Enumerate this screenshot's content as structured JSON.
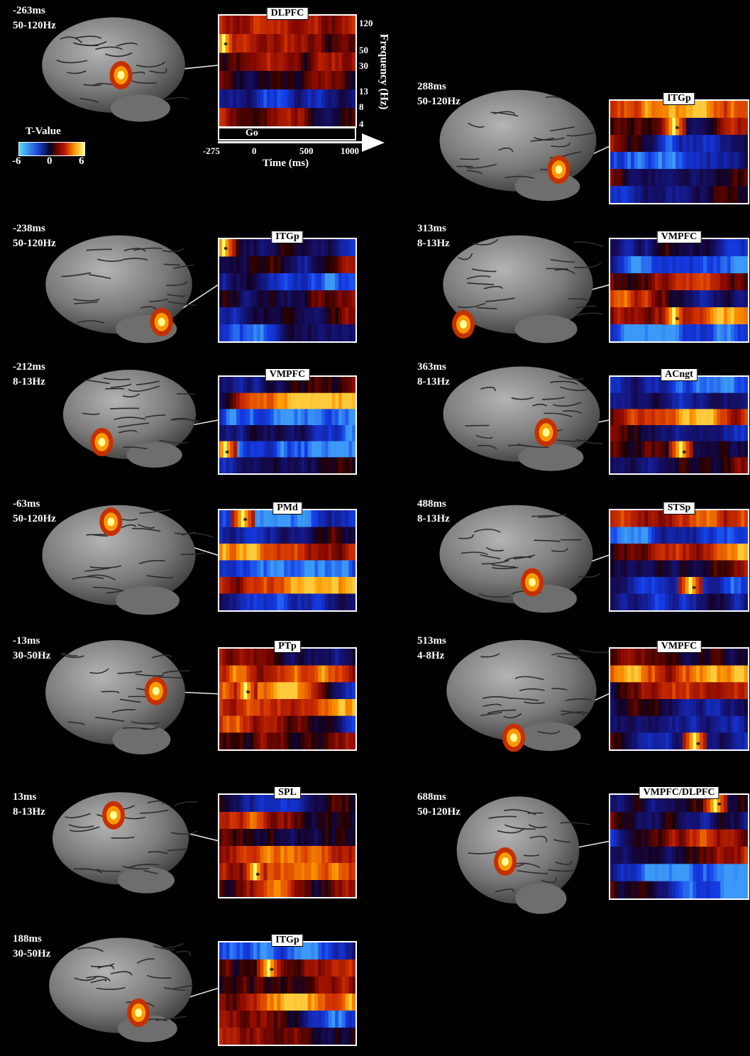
{
  "colors": {
    "background": "#000000",
    "label": "#ffffff",
    "brain": "#8a8a8a"
  },
  "colorbar": {
    "title": "T-Value",
    "ticks": [
      "-6",
      "0",
      "6"
    ]
  },
  "axes": {
    "time_label": "Time (ms)",
    "time_ticks": [
      "-275",
      "0",
      "500",
      "1000"
    ],
    "freq_label": "Frequency (Hz)",
    "freq_ticks": [
      "120",
      "50",
      "30",
      "13",
      "8",
      "4"
    ],
    "event_label": "Go"
  },
  "panels": [
    {
      "time": "-263ms",
      "band": "50-120Hz",
      "roi": "DLPFC"
    },
    {
      "time": "288ms",
      "band": "50-120Hz",
      "roi": "ITGp"
    },
    {
      "time": "-238ms",
      "band": "50-120Hz",
      "roi": "ITGp"
    },
    {
      "time": "313ms",
      "band": "8-13Hz",
      "roi": "VMPFC"
    },
    {
      "time": "-212ms",
      "band": "8-13Hz",
      "roi": "VMPFC"
    },
    {
      "time": "363ms",
      "band": "8-13Hz",
      "roi": "ACngt"
    },
    {
      "time": "-63ms",
      "band": "50-120Hz",
      "roi": "PMd"
    },
    {
      "time": "488ms",
      "band": "8-13Hz",
      "roi": "STSp"
    },
    {
      "time": "-13ms",
      "band": "30-50Hz",
      "roi": "PTp"
    },
    {
      "time": "513ms",
      "band": "4-8Hz",
      "roi": "VMPFC"
    },
    {
      "time": "13ms",
      "band": "8-13Hz",
      "roi": "SPL"
    },
    {
      "time": "688ms",
      "band": "50-120Hz",
      "roi": "VMPFC/DLPFC"
    },
    {
      "time": "188ms",
      "band": "30-50Hz",
      "roi": "ITGp"
    }
  ],
  "significance_marker": "*"
}
